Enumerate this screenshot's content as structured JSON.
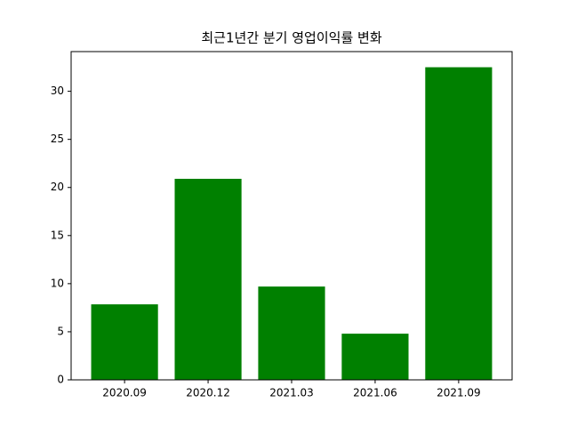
{
  "chart_data": {
    "type": "bar",
    "title": "최근1년간 분기 영업이익률 변화",
    "categories": [
      "2020.09",
      "2020.12",
      "2021.03",
      "2021.06",
      "2021.09"
    ],
    "values": [
      7.85,
      20.9,
      9.7,
      4.8,
      32.5
    ],
    "color": "#008000",
    "ylim": [
      0,
      34.125
    ],
    "yticks": [
      0,
      5,
      10,
      15,
      20,
      25,
      30
    ],
    "grid": false
  }
}
